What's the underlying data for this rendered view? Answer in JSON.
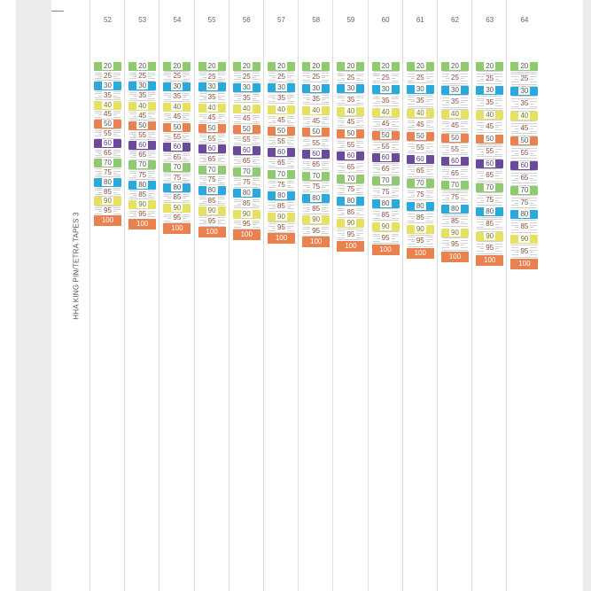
{
  "sheet_label": "HHA KING PIN/TETRA TAPES 3",
  "columns": [
    {
      "number": "52",
      "scale": 0.935
    },
    {
      "number": "53",
      "scale": 0.956
    },
    {
      "number": "54",
      "scale": 0.98
    },
    {
      "number": "55",
      "scale": 1.001
    },
    {
      "number": "56",
      "scale": 1.021
    },
    {
      "number": "57",
      "scale": 1.043
    },
    {
      "number": "58",
      "scale": 1.063
    },
    {
      "number": "59",
      "scale": 1.088
    },
    {
      "number": "60",
      "scale": 1.11
    },
    {
      "number": "61",
      "scale": 1.13
    },
    {
      "number": "62",
      "scale": 1.153
    },
    {
      "number": "63",
      "scale": 1.175
    },
    {
      "number": "64",
      "scale": 1.198
    }
  ],
  "marks": [
    {
      "value": 20,
      "label": "20",
      "color": "#8fc970"
    },
    {
      "value": 25,
      "label": "25",
      "color": ""
    },
    {
      "value": 30,
      "label": "30",
      "color": "#2aa9dd"
    },
    {
      "value": 35,
      "label": "35",
      "color": ""
    },
    {
      "value": 40,
      "label": "40",
      "color": "#e6e160"
    },
    {
      "value": 45,
      "label": "45",
      "color": ""
    },
    {
      "value": 50,
      "label": "50",
      "color": "#ea8250"
    },
    {
      "value": 55,
      "label": "55",
      "color": ""
    },
    {
      "value": 60,
      "label": "60",
      "color": "#6a4a9c"
    },
    {
      "value": 65,
      "label": "65",
      "color": ""
    },
    {
      "value": 70,
      "label": "70",
      "color": "#8fc970"
    },
    {
      "value": 75,
      "label": "75",
      "color": ""
    },
    {
      "value": 80,
      "label": "80",
      "color": "#2aa9dd"
    },
    {
      "value": 85,
      "label": "85",
      "color": ""
    },
    {
      "value": 90,
      "label": "90",
      "color": "#e6e160"
    },
    {
      "value": 95,
      "label": "95",
      "color": ""
    },
    {
      "value": 100,
      "label": "100",
      "color": "#ea8250"
    }
  ]
}
